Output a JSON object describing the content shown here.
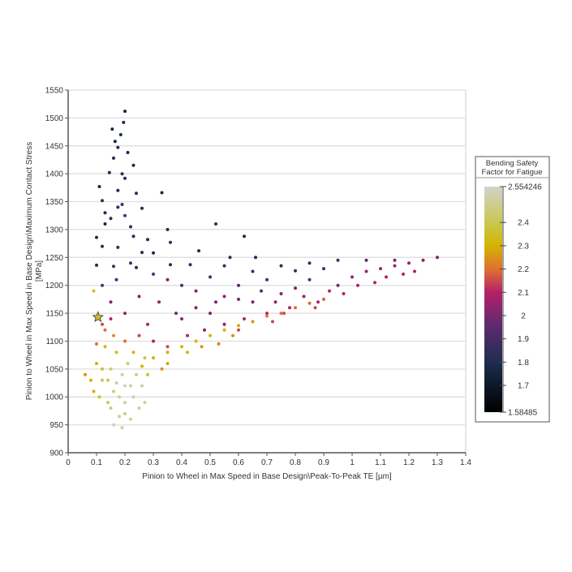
{
  "chart_data": {
    "type": "scatter",
    "xlabel": "Pinion to Wheel in Max Speed in Base Design\\Peak-To-Peak TE [µm]",
    "ylabel_lines": [
      "Pinion to Wheel in Max Speed in Base Design\\Maximum Contact Stress",
      "[MPa]"
    ],
    "xlim": [
      0,
      1.4
    ],
    "ylim": [
      900,
      1550
    ],
    "x_ticks": [
      "0",
      "0.1",
      "0.2",
      "0.3",
      "0.4",
      "0.5",
      "0.6",
      "0.7",
      "0.8",
      "0.9",
      "1",
      "1.1",
      "1.2",
      "1.3",
      "1.4"
    ],
    "y_ticks": [
      "900",
      "950",
      "1000",
      "1050",
      "1100",
      "1150",
      "1200",
      "1250",
      "1300",
      "1350",
      "1400",
      "1450",
      "1500",
      "1550"
    ],
    "grid": "horizontal",
    "colorbar": {
      "title_lines": [
        "Bending Safety",
        "Factor for Fatigue"
      ],
      "min": 1.58485,
      "max": 2.554246,
      "ticks": [
        "2.554246",
        "2.4",
        "2.3",
        "2.2",
        "2.1",
        "2",
        "1.9",
        "1.8",
        "1.7",
        "1.58485"
      ],
      "stops": [
        {
          "v": 1.58485,
          "color": "#000000"
        },
        {
          "v": 1.7,
          "color": "#0d1828"
        },
        {
          "v": 1.8,
          "color": "#1f2d50"
        },
        {
          "v": 1.95,
          "color": "#5a2a6e"
        },
        {
          "v": 2.1,
          "color": "#b5206a"
        },
        {
          "v": 2.2,
          "color": "#e07030"
        },
        {
          "v": 2.3,
          "color": "#d4b400"
        },
        {
          "v": 2.4,
          "color": "#c8c850"
        },
        {
          "v": 2.554246,
          "color": "#d2d2cc"
        }
      ]
    },
    "highlighted_point": {
      "x": 0.105,
      "y": 1143,
      "c": 2.35,
      "marker": "star"
    },
    "points_xyc": [
      [
        0.2,
        1512,
        1.75
      ],
      [
        0.195,
        1492,
        1.8
      ],
      [
        0.155,
        1480,
        1.78
      ],
      [
        0.185,
        1470,
        1.8
      ],
      [
        0.165,
        1458,
        1.76
      ],
      [
        0.175,
        1447,
        1.82
      ],
      [
        0.21,
        1438,
        1.78
      ],
      [
        0.16,
        1428,
        1.8
      ],
      [
        0.23,
        1415,
        1.77
      ],
      [
        0.145,
        1402,
        1.8
      ],
      [
        0.19,
        1400,
        1.85
      ],
      [
        0.2,
        1392,
        1.82
      ],
      [
        0.11,
        1377,
        1.78
      ],
      [
        0.175,
        1370,
        1.8
      ],
      [
        0.24,
        1365,
        1.82
      ],
      [
        0.33,
        1366,
        1.78
      ],
      [
        0.12,
        1352,
        1.85
      ],
      [
        0.19,
        1345,
        1.9
      ],
      [
        0.175,
        1340,
        1.85
      ],
      [
        0.26,
        1338,
        1.8
      ],
      [
        0.13,
        1330,
        1.8
      ],
      [
        0.2,
        1325,
        1.95
      ],
      [
        0.15,
        1320,
        1.82
      ],
      [
        0.13,
        1310,
        1.78
      ],
      [
        0.22,
        1305,
        1.85
      ],
      [
        0.35,
        1300,
        1.8
      ],
      [
        0.1,
        1286,
        1.78
      ],
      [
        0.23,
        1288,
        1.82
      ],
      [
        0.28,
        1282,
        1.8
      ],
      [
        0.36,
        1277,
        1.85
      ],
      [
        0.12,
        1270,
        1.85
      ],
      [
        0.175,
        1268,
        1.85
      ],
      [
        0.26,
        1259,
        1.82
      ],
      [
        0.3,
        1258,
        1.8
      ],
      [
        0.46,
        1262,
        1.8
      ],
      [
        0.1,
        1236,
        1.8
      ],
      [
        0.16,
        1234,
        1.9
      ],
      [
        0.24,
        1232,
        1.82
      ],
      [
        0.36,
        1237,
        1.82
      ],
      [
        0.52,
        1310,
        1.85
      ],
      [
        0.62,
        1288,
        1.8
      ],
      [
        0.57,
        1250,
        1.85
      ],
      [
        0.66,
        1250,
        1.8
      ],
      [
        0.8,
        1226,
        1.85
      ],
      [
        0.75,
        1235,
        1.8
      ],
      [
        0.43,
        1237,
        1.85
      ],
      [
        0.3,
        1220,
        1.95
      ],
      [
        0.35,
        1210,
        2.0
      ],
      [
        0.4,
        1200,
        1.95
      ],
      [
        0.45,
        1190,
        2.0
      ],
      [
        0.5,
        1215,
        1.9
      ],
      [
        0.55,
        1180,
        2.05
      ],
      [
        0.6,
        1200,
        1.95
      ],
      [
        0.65,
        1170,
        2.0
      ],
      [
        0.7,
        1210,
        1.92
      ],
      [
        0.75,
        1185,
        2.0
      ],
      [
        0.8,
        1195,
        2.0
      ],
      [
        0.85,
        1210,
        1.95
      ],
      [
        0.9,
        1230,
        1.9
      ],
      [
        0.95,
        1200,
        2.0
      ],
      [
        1.0,
        1215,
        2.05
      ],
      [
        1.05,
        1225,
        2.05
      ],
      [
        1.1,
        1230,
        2.05
      ],
      [
        1.15,
        1235,
        2.05
      ],
      [
        1.2,
        1240,
        2.05
      ],
      [
        1.25,
        1245,
        2.0
      ],
      [
        1.3,
        1250,
        2.0
      ],
      [
        1.22,
        1225,
        2.1
      ],
      [
        1.12,
        1215,
        2.1
      ],
      [
        1.02,
        1200,
        2.1
      ],
      [
        0.92,
        1190,
        2.1
      ],
      [
        0.88,
        1170,
        2.1
      ],
      [
        0.78,
        1160,
        2.1
      ],
      [
        0.7,
        1150,
        2.1
      ],
      [
        0.62,
        1140,
        2.1
      ],
      [
        0.55,
        1130,
        2.05
      ],
      [
        0.48,
        1120,
        2.05
      ],
      [
        0.42,
        1110,
        2.1
      ],
      [
        0.38,
        1150,
        2.0
      ],
      [
        0.32,
        1170,
        2.05
      ],
      [
        0.25,
        1180,
        2.0
      ],
      [
        0.28,
        1130,
        2.1
      ],
      [
        0.2,
        1150,
        2.05
      ],
      [
        0.15,
        1170,
        2.0
      ],
      [
        0.12,
        1200,
        1.95
      ],
      [
        0.17,
        1210,
        1.95
      ],
      [
        0.22,
        1240,
        1.9
      ],
      [
        0.45,
        1160,
        2.0
      ],
      [
        0.52,
        1170,
        2.0
      ],
      [
        0.6,
        1175,
        2.0
      ],
      [
        0.68,
        1190,
        1.95
      ],
      [
        0.73,
        1170,
        2.05
      ],
      [
        0.83,
        1180,
        2.05
      ],
      [
        0.97,
        1185,
        2.1
      ],
      [
        1.08,
        1205,
        2.1
      ],
      [
        1.18,
        1220,
        2.1
      ],
      [
        0.65,
        1225,
        1.9
      ],
      [
        0.55,
        1235,
        1.88
      ],
      [
        0.85,
        1240,
        1.88
      ],
      [
        0.95,
        1245,
        1.9
      ],
      [
        1.05,
        1245,
        1.95
      ],
      [
        1.15,
        1245,
        1.98
      ],
      [
        0.3,
        1100,
        2.1
      ],
      [
        0.35,
        1090,
        2.15
      ],
      [
        0.25,
        1110,
        2.15
      ],
      [
        0.4,
        1140,
        2.05
      ],
      [
        0.5,
        1150,
        2.0
      ],
      [
        0.6,
        1120,
        2.15
      ],
      [
        0.72,
        1135,
        2.15
      ],
      [
        0.76,
        1150,
        2.15
      ],
      [
        0.87,
        1160,
        2.15
      ],
      [
        0.3,
        1070,
        2.3
      ],
      [
        0.35,
        1080,
        2.3
      ],
      [
        0.4,
        1090,
        2.3
      ],
      [
        0.45,
        1100,
        2.3
      ],
      [
        0.5,
        1110,
        2.3
      ],
      [
        0.55,
        1120,
        2.3
      ],
      [
        0.6,
        1128,
        2.28
      ],
      [
        0.65,
        1135,
        2.25
      ],
      [
        0.7,
        1145,
        2.22
      ],
      [
        0.75,
        1150,
        2.2
      ],
      [
        0.8,
        1160,
        2.2
      ],
      [
        0.85,
        1168,
        2.2
      ],
      [
        0.9,
        1175,
        2.18
      ],
      [
        0.35,
        1060,
        2.28
      ],
      [
        0.42,
        1080,
        2.3
      ],
      [
        0.47,
        1090,
        2.25
      ],
      [
        0.53,
        1095,
        2.22
      ],
      [
        0.58,
        1110,
        2.25
      ],
      [
        0.33,
        1050,
        2.25
      ],
      [
        0.26,
        1055,
        2.3
      ],
      [
        0.28,
        1040,
        2.35
      ],
      [
        0.1,
        1060,
        2.3
      ],
      [
        0.12,
        1050,
        2.35
      ],
      [
        0.14,
        1030,
        2.4
      ],
      [
        0.16,
        1010,
        2.45
      ],
      [
        0.18,
        1000,
        2.5
      ],
      [
        0.2,
        990,
        2.5
      ],
      [
        0.22,
        1020,
        2.5
      ],
      [
        0.24,
        1040,
        2.45
      ],
      [
        0.21,
        1060,
        2.45
      ],
      [
        0.17,
        1080,
        2.35
      ],
      [
        0.13,
        1090,
        2.3
      ],
      [
        0.15,
        1050,
        2.45
      ],
      [
        0.19,
        1040,
        2.5
      ],
      [
        0.23,
        1000,
        2.5
      ],
      [
        0.25,
        980,
        2.5
      ],
      [
        0.18,
        965,
        2.5
      ],
      [
        0.16,
        950,
        2.55
      ],
      [
        0.19,
        945,
        2.5
      ],
      [
        0.2,
        970,
        2.45
      ],
      [
        0.11,
        1000,
        2.35
      ],
      [
        0.09,
        1010,
        2.3
      ],
      [
        0.08,
        1030,
        2.3
      ],
      [
        0.06,
        1040,
        2.25
      ],
      [
        0.1,
        1095,
        2.2
      ],
      [
        0.13,
        1120,
        2.2
      ],
      [
        0.16,
        1110,
        2.25
      ],
      [
        0.2,
        1100,
        2.2
      ],
      [
        0.23,
        1080,
        2.3
      ],
      [
        0.27,
        1070,
        2.4
      ],
      [
        0.12,
        1030,
        2.4
      ],
      [
        0.14,
        990,
        2.4
      ],
      [
        0.22,
        960,
        2.5
      ],
      [
        0.26,
        1020,
        2.5
      ],
      [
        0.27,
        990,
        2.5
      ],
      [
        0.17,
        1025,
        2.5
      ],
      [
        0.2,
        1020,
        2.55
      ],
      [
        0.15,
        980,
        2.45
      ],
      [
        0.09,
        1190,
        2.35
      ],
      [
        0.12,
        1130,
        2.15
      ],
      [
        0.15,
        1140,
        2.1
      ]
    ]
  }
}
